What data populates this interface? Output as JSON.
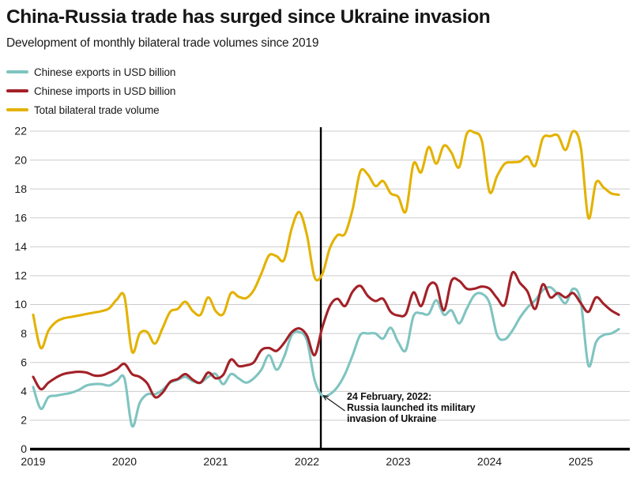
{
  "header": {
    "title": "China-Russia trade has surged since Ukraine invasion",
    "subtitle": "Development of monthly bilateral trade volumes since 2019"
  },
  "chart_data": {
    "type": "line",
    "title": "China-Russia trade has surged since Ukraine invasion",
    "subtitle": "Development of monthly bilateral trade volumes since 2019",
    "x_frequency": "monthly",
    "x_start": "2019-01",
    "x_end": "2025-06",
    "xticks": [
      "2019",
      "2020",
      "2021",
      "2022",
      "2023",
      "2024",
      "2025"
    ],
    "ylim": [
      0,
      22
    ],
    "yticks": [
      0,
      2,
      4,
      6,
      8,
      10,
      12,
      14,
      16,
      18,
      20,
      22
    ],
    "grid": "horizontal",
    "legend_position": "top-left",
    "event_line": {
      "date": "2022-02-24",
      "label_lines": [
        "24 February, 2022:",
        "Russia launched its military",
        "invasion of Ukraine"
      ]
    },
    "series": [
      {
        "name": "Chinese exports in USD billion",
        "color": "#7fc4c0",
        "values": [
          4.3,
          2.8,
          3.6,
          3.7,
          3.8,
          3.9,
          4.1,
          4.4,
          4.5,
          4.5,
          4.4,
          4.7,
          4.9,
          1.6,
          3.2,
          3.8,
          3.8,
          4.1,
          4.6,
          4.8,
          5.0,
          4.7,
          4.6,
          5.0,
          5.2,
          4.5,
          5.2,
          4.9,
          4.6,
          4.9,
          5.5,
          6.5,
          5.5,
          6.4,
          7.9,
          8.1,
          7.5,
          4.8,
          3.7,
          3.8,
          4.3,
          5.2,
          6.5,
          7.9,
          8.0,
          8.0,
          7.65,
          8.4,
          7.4,
          6.85,
          9.2,
          9.4,
          9.35,
          10.3,
          9.3,
          9.6,
          8.7,
          9.7,
          10.65,
          10.75,
          10.1,
          7.9,
          7.6,
          8.2,
          9.1,
          9.8,
          10.3,
          11.0,
          11.2,
          10.7,
          10.1,
          11.1,
          10.2,
          5.8,
          7.4,
          7.9,
          8.0,
          8.3
        ]
      },
      {
        "name": "Chinese imports in USD billion",
        "color": "#a32128",
        "values": [
          5.0,
          4.15,
          4.6,
          4.95,
          5.2,
          5.3,
          5.35,
          5.3,
          5.1,
          5.1,
          5.3,
          5.55,
          5.9,
          5.2,
          5.0,
          4.55,
          3.6,
          3.9,
          4.65,
          4.85,
          5.2,
          4.8,
          4.6,
          5.3,
          4.9,
          5.15,
          6.2,
          5.75,
          5.8,
          6.0,
          6.85,
          7.0,
          6.8,
          7.35,
          8.1,
          8.35,
          7.85,
          6.5,
          8.4,
          9.9,
          10.4,
          9.9,
          10.9,
          11.3,
          10.6,
          10.25,
          10.4,
          9.5,
          9.25,
          9.35,
          10.85,
          9.9,
          11.3,
          11.35,
          9.6,
          11.65,
          11.65,
          11.1,
          11.1,
          11.25,
          11.1,
          10.45,
          10.0,
          12.2,
          11.5,
          10.9,
          9.7,
          11.4,
          10.5,
          10.8,
          10.5,
          10.8,
          10.1,
          9.5,
          10.5,
          10.05,
          9.6,
          9.3
        ]
      },
      {
        "name": "Total bilateral trade volume",
        "color": "#e3b200",
        "values": [
          9.3,
          7.0,
          8.2,
          8.8,
          9.05,
          9.15,
          9.25,
          9.35,
          9.45,
          9.55,
          9.75,
          10.35,
          10.55,
          6.75,
          8.0,
          8.1,
          7.3,
          8.35,
          9.5,
          9.7,
          10.2,
          9.55,
          9.3,
          10.5,
          9.55,
          9.35,
          10.8,
          10.55,
          10.45,
          11.0,
          12.15,
          13.4,
          13.35,
          13.1,
          15.3,
          16.4,
          14.8,
          11.9,
          12.1,
          13.9,
          14.8,
          14.9,
          16.6,
          19.2,
          19.0,
          18.2,
          18.55,
          17.7,
          17.45,
          16.45,
          19.75,
          19.15,
          20.9,
          19.75,
          21.0,
          20.5,
          19.5,
          21.8,
          21.9,
          21.3,
          17.8,
          18.9,
          19.75,
          19.85,
          19.9,
          20.25,
          19.6,
          21.5,
          21.65,
          21.7,
          20.7,
          22.0,
          20.9,
          16.0,
          18.45,
          18.1,
          17.7,
          17.6
        ]
      }
    ]
  }
}
